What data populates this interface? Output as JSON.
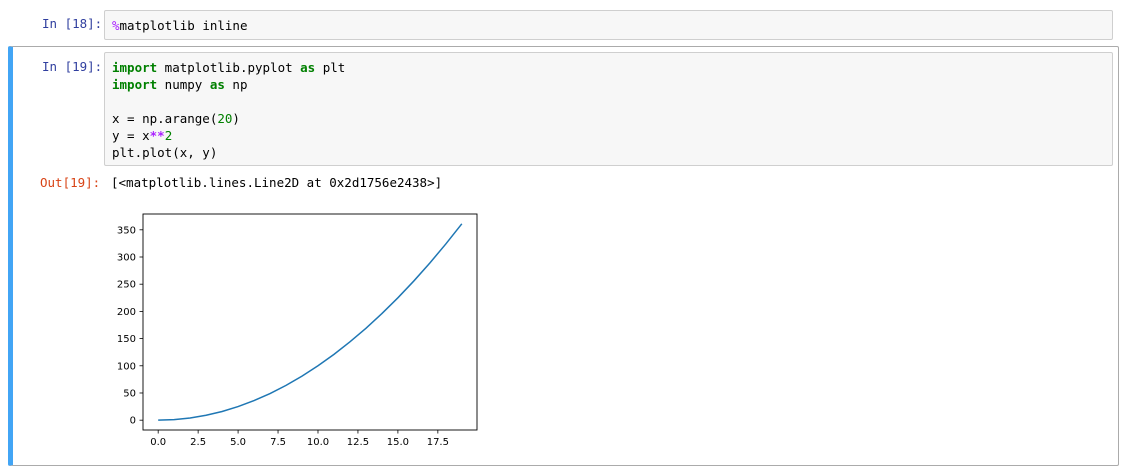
{
  "cell18": {
    "prompt": "In [18]:",
    "magic_symbol": "%",
    "magic_text": "matplotlib inline"
  },
  "cell19": {
    "prompt": "In [19]:",
    "code": {
      "line1_kw": "import",
      "line1_mod": " matplotlib.pyplot ",
      "line1_as": "as",
      "line1_alias": " plt",
      "line2_kw": "import",
      "line2_mod": " numpy ",
      "line2_as": "as",
      "line2_alias": " np",
      "line4_pre": "x = np.arange(",
      "line4_num": "20",
      "line4_post": ")",
      "line5_pre": "y = x",
      "line5_op": "**",
      "line5_num": "2",
      "line6": "plt.plot(x, y)"
    },
    "out_prompt": "Out[19]:",
    "out_text": "[<matplotlib.lines.Line2D at 0x2d1756e2438>]"
  },
  "colors": {
    "active_cell_bar": "#42a5f5",
    "line_color": "#1f77b4",
    "prompt_in": "#303f9f",
    "prompt_out": "#d84315"
  },
  "chart_data": {
    "type": "line",
    "x": [
      0,
      1,
      2,
      3,
      4,
      5,
      6,
      7,
      8,
      9,
      10,
      11,
      12,
      13,
      14,
      15,
      16,
      17,
      18,
      19
    ],
    "series": [
      {
        "values": [
          0,
          1,
          4,
          9,
          16,
          25,
          36,
          49,
          64,
          81,
          100,
          121,
          144,
          169,
          196,
          225,
          256,
          289,
          324,
          361
        ]
      }
    ],
    "x_ticks": [
      "0.0",
      "2.5",
      "5.0",
      "7.5",
      "10.0",
      "12.5",
      "15.0",
      "17.5"
    ],
    "y_ticks": [
      "0",
      "50",
      "100",
      "150",
      "200",
      "250",
      "300",
      "350"
    ],
    "xlim": [
      -0.95,
      19.95
    ],
    "ylim": [
      -18.05,
      379.05
    ],
    "grid": false
  }
}
